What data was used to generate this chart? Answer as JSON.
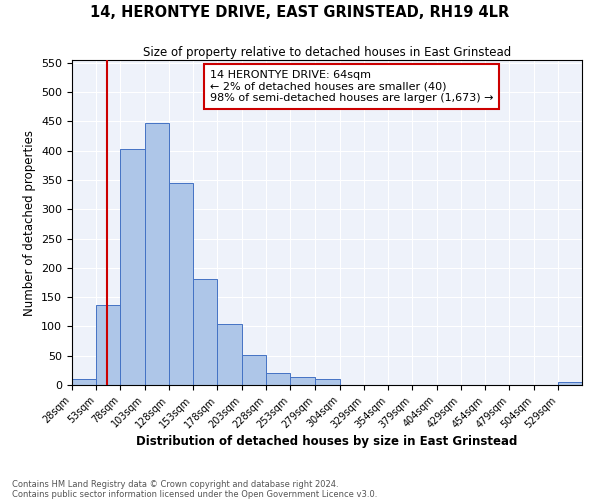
{
  "title": "14, HERONTYE DRIVE, EAST GRINSTEAD, RH19 4LR",
  "subtitle": "Size of property relative to detached houses in East Grinstead",
  "xlabel": "Distribution of detached houses by size in East Grinstead",
  "ylabel": "Number of detached properties",
  "bin_edges": [
    28,
    53,
    78,
    103,
    128,
    153,
    178,
    203,
    228,
    253,
    279,
    304,
    329,
    354,
    379,
    404,
    429,
    454,
    479,
    504,
    529,
    554
  ],
  "bin_labels": [
    "28sqm",
    "53sqm",
    "78sqm",
    "103sqm",
    "128sqm",
    "153sqm",
    "178sqm",
    "203sqm",
    "228sqm",
    "253sqm",
    "279sqm",
    "304sqm",
    "329sqm",
    "354sqm",
    "379sqm",
    "404sqm",
    "429sqm",
    "454sqm",
    "479sqm",
    "504sqm",
    "529sqm"
  ],
  "counts": [
    10,
    137,
    403,
    447,
    345,
    181,
    104,
    52,
    20,
    13,
    10,
    0,
    0,
    0,
    0,
    0,
    0,
    0,
    0,
    0,
    5
  ],
  "bar_color": "#aec6e8",
  "bar_edge_color": "#4472c4",
  "property_line_x": 64,
  "property_line_color": "#cc0000",
  "annotation_line1": "14 HERONTYE DRIVE: 64sqm",
  "annotation_line2": "← 2% of detached houses are smaller (40)",
  "annotation_line3": "98% of semi-detached houses are larger (1,673) →",
  "annotation_box_color": "#ffffff",
  "annotation_box_edge_color": "#cc0000",
  "ylim": [
    0,
    555
  ],
  "yticks": [
    0,
    50,
    100,
    150,
    200,
    250,
    300,
    350,
    400,
    450,
    500,
    550
  ],
  "footer_line1": "Contains HM Land Registry data © Crown copyright and database right 2024.",
  "footer_line2": "Contains public sector information licensed under the Open Government Licence v3.0.",
  "background_color": "#eef2fa"
}
